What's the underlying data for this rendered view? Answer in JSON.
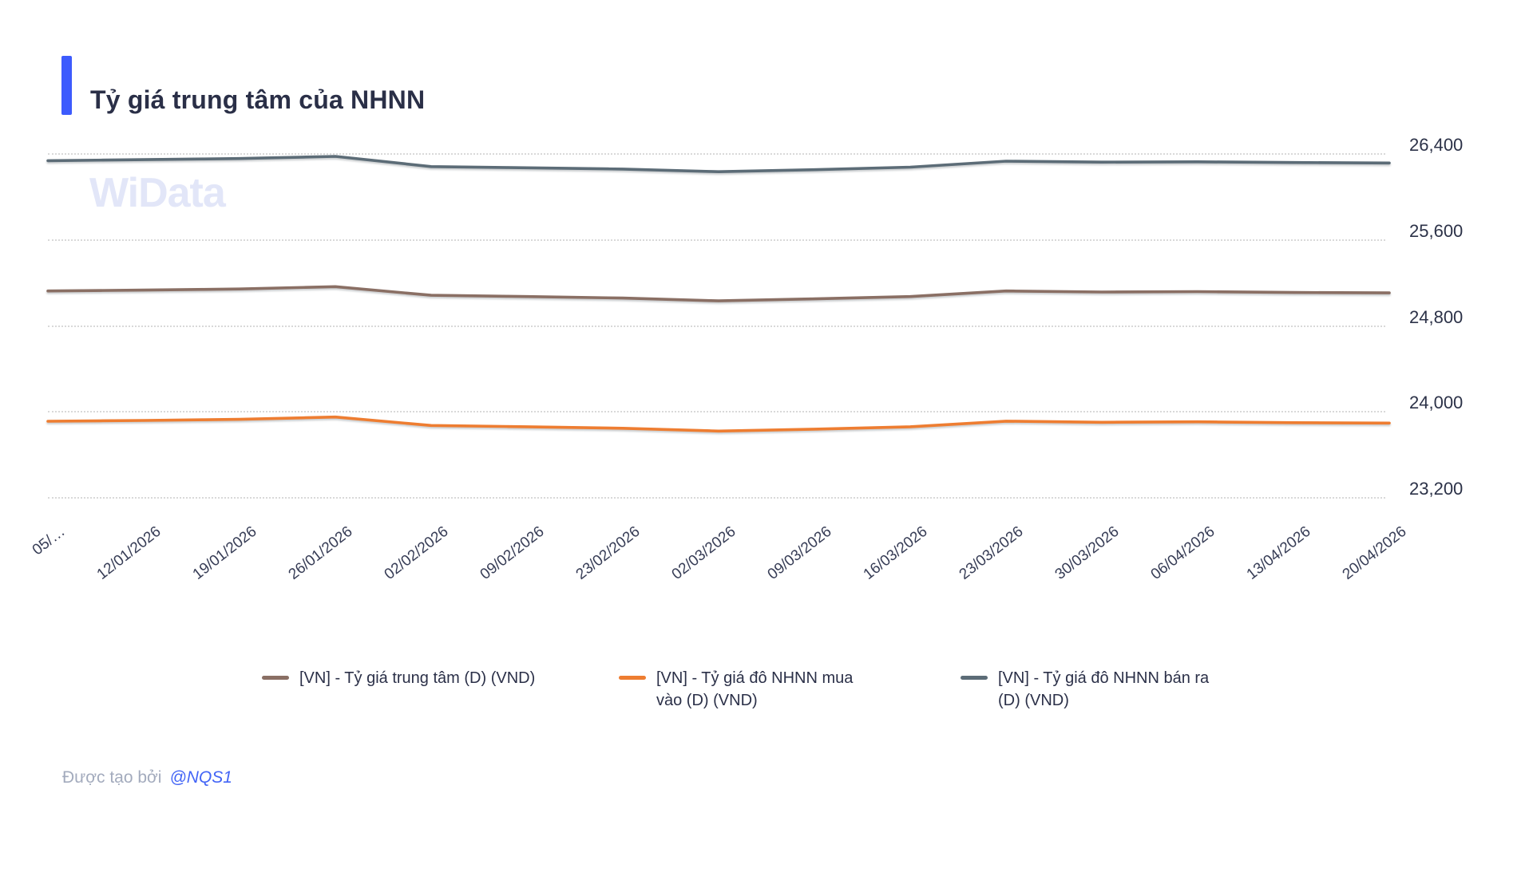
{
  "header": {
    "title": "Tỷ giá trung tâm của NHNN"
  },
  "watermark": "WiData",
  "colors": {
    "accent_blue": "#3D5BFD",
    "central": "#8A6F64",
    "buy": "#EE7D31",
    "sell": "#5C6C77",
    "grid": "#D9D9D9",
    "watermark": "#E2E6F8"
  },
  "chart_data": {
    "type": "line",
    "title": "Tỷ giá trung tâm của NHNN",
    "categories": [
      "05/…",
      "12/01/2026",
      "19/01/2026",
      "26/01/2026",
      "02/02/2026",
      "09/02/2026",
      "23/02/2026",
      "02/03/2026",
      "09/03/2026",
      "16/03/2026",
      "23/03/2026",
      "30/03/2026",
      "06/04/2026",
      "13/04/2026",
      "20/04/2026"
    ],
    "series": [
      {
        "name": "[VN] - Tỷ giá trung tâm (D) (VND)",
        "color_key": "central",
        "values": [
          25118,
          25126,
          25136,
          25158,
          25078,
          25066,
          25052,
          25026,
          25044,
          25066,
          25118,
          25108,
          25112,
          25104,
          25100
        ]
      },
      {
        "name": "[VN] - Tỷ giá đô NHNN mua vào (D) (VND)",
        "color_key": "buy",
        "values": [
          23905,
          23913,
          23923,
          23945,
          23866,
          23854,
          23840,
          23814,
          23832,
          23854,
          23906,
          23896,
          23900,
          23892,
          23888
        ]
      },
      {
        "name": "[VN] - Tỷ giá đô NHNN bán ra (D) (VND)",
        "color_key": "sell",
        "values": [
          26330,
          26340,
          26350,
          26370,
          26275,
          26264,
          26252,
          26228,
          26246,
          26270,
          26326,
          26317,
          26320,
          26313,
          26309
        ]
      }
    ],
    "yticks": [
      "26,400",
      "25,600",
      "24,800",
      "24,000",
      "23,200"
    ],
    "ylim": [
      23200,
      26400
    ],
    "xlabel": "",
    "ylabel": "",
    "grid": "horizontal-dotted",
    "legend_position": "bottom"
  },
  "footer": {
    "created_by_label": "Được tạo bởi",
    "author": "@NQS1"
  }
}
